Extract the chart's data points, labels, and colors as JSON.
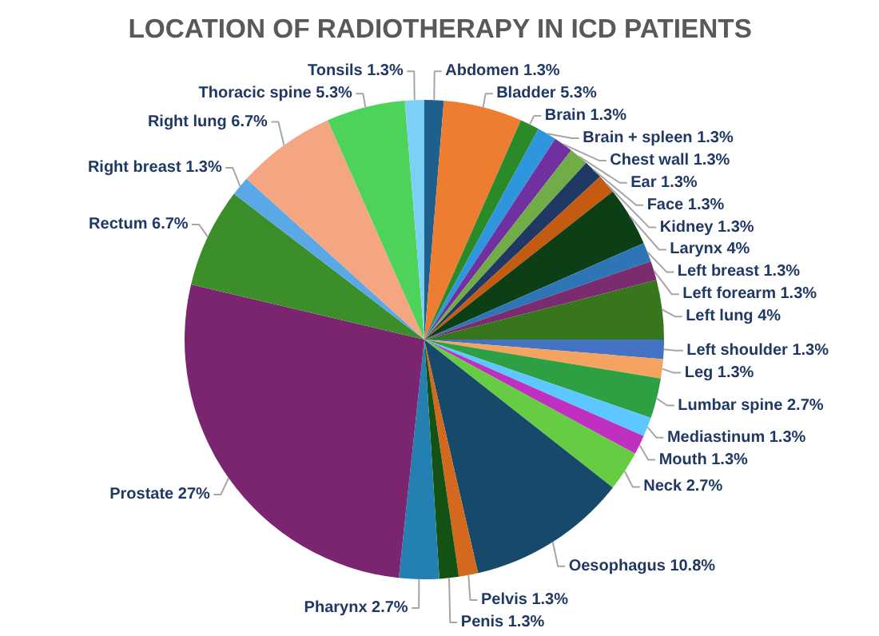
{
  "chart_data": {
    "type": "pie",
    "title": "LOCATION OF RADIOTHERAPY IN ICD PATIENTS",
    "categories": [
      "Abdomen",
      "Bladder",
      "Brain",
      "Brain + spleen",
      "Chest wall",
      "Ear",
      "Face",
      "Kidney",
      "Larynx",
      "Left breast",
      "Left forearm",
      "Left lung",
      "Left shoulder",
      "Leg",
      "Lumbar spine",
      "Mediastinum",
      "Mouth",
      "Neck",
      "Oesophagus",
      "Pelvis",
      "Penis",
      "Pharynx",
      "Prostate",
      "Rectum",
      "Right breast",
      "Right lung",
      "Thoracic spine",
      "Tonsils"
    ],
    "values": [
      1.3,
      5.3,
      1.3,
      1.3,
      1.3,
      1.3,
      1.3,
      1.3,
      4,
      1.3,
      1.3,
      4,
      1.3,
      1.3,
      2.7,
      1.3,
      1.3,
      2.7,
      10.8,
      1.3,
      1.3,
      2.7,
      27,
      6.7,
      1.3,
      6.7,
      5.3,
      1.3
    ],
    "colors": [
      "#1f5f8b",
      "#ed7d31",
      "#2a8a2a",
      "#2f95dc",
      "#7030a0",
      "#70ad47",
      "#1f3864",
      "#c55a11",
      "#0c3f16",
      "#2e75b6",
      "#7b2c6e",
      "#38761d",
      "#4472c4",
      "#f4a460",
      "#2ea043",
      "#5cc8ff",
      "#c030c0",
      "#66cc44",
      "#174a6a",
      "#d2691e",
      "#145214",
      "#2480b0",
      "#7b2470",
      "#3b8e2a",
      "#5aa9e6",
      "#f4a582",
      "#4dd35a",
      "#7dd0f5"
    ],
    "value_labels": [
      "1.3%",
      "5.3%",
      "1.3%",
      "1.3%",
      "1.3%",
      "1.3%",
      "1.3%",
      "1.3%",
      "4%",
      "1.3%",
      "1.3%",
      "4%",
      "1.3%",
      "1.3%",
      "2.7%",
      "1.3%",
      "1.3%",
      "2.7%",
      "10.8%",
      "1.3%",
      "1.3%",
      "2.7%",
      "27%",
      "6.7%",
      "1.3%",
      "6.7%",
      "5.3%",
      "1.3%"
    ]
  }
}
